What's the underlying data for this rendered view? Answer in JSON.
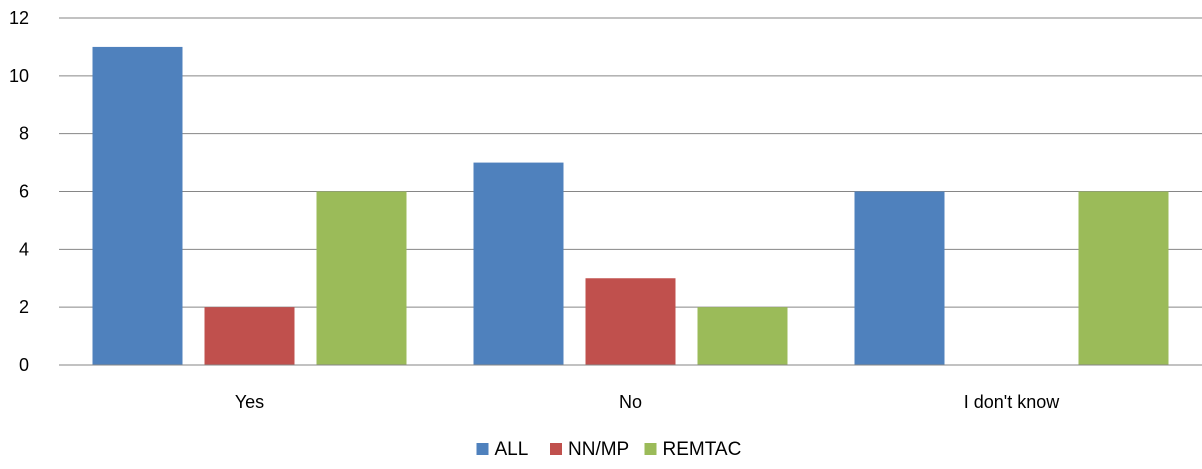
{
  "chart_data": {
    "type": "bar",
    "categories": [
      "Yes",
      "No",
      "I don't know"
    ],
    "series": [
      {
        "name": "ALL",
        "values": [
          11,
          7,
          6
        ],
        "color": "#4F81BD"
      },
      {
        "name": "NN/MP",
        "values": [
          2,
          3,
          0
        ],
        "color": "#C0504D"
      },
      {
        "name": "REMTAC",
        "values": [
          6,
          2,
          6
        ],
        "color": "#9BBB59"
      }
    ],
    "ylim": [
      0,
      12
    ],
    "yticks": [
      0,
      2,
      4,
      6,
      8,
      10,
      12
    ],
    "grid": true,
    "legend_position": "bottom-center",
    "title": "",
    "xlabel": "",
    "ylabel": ""
  }
}
